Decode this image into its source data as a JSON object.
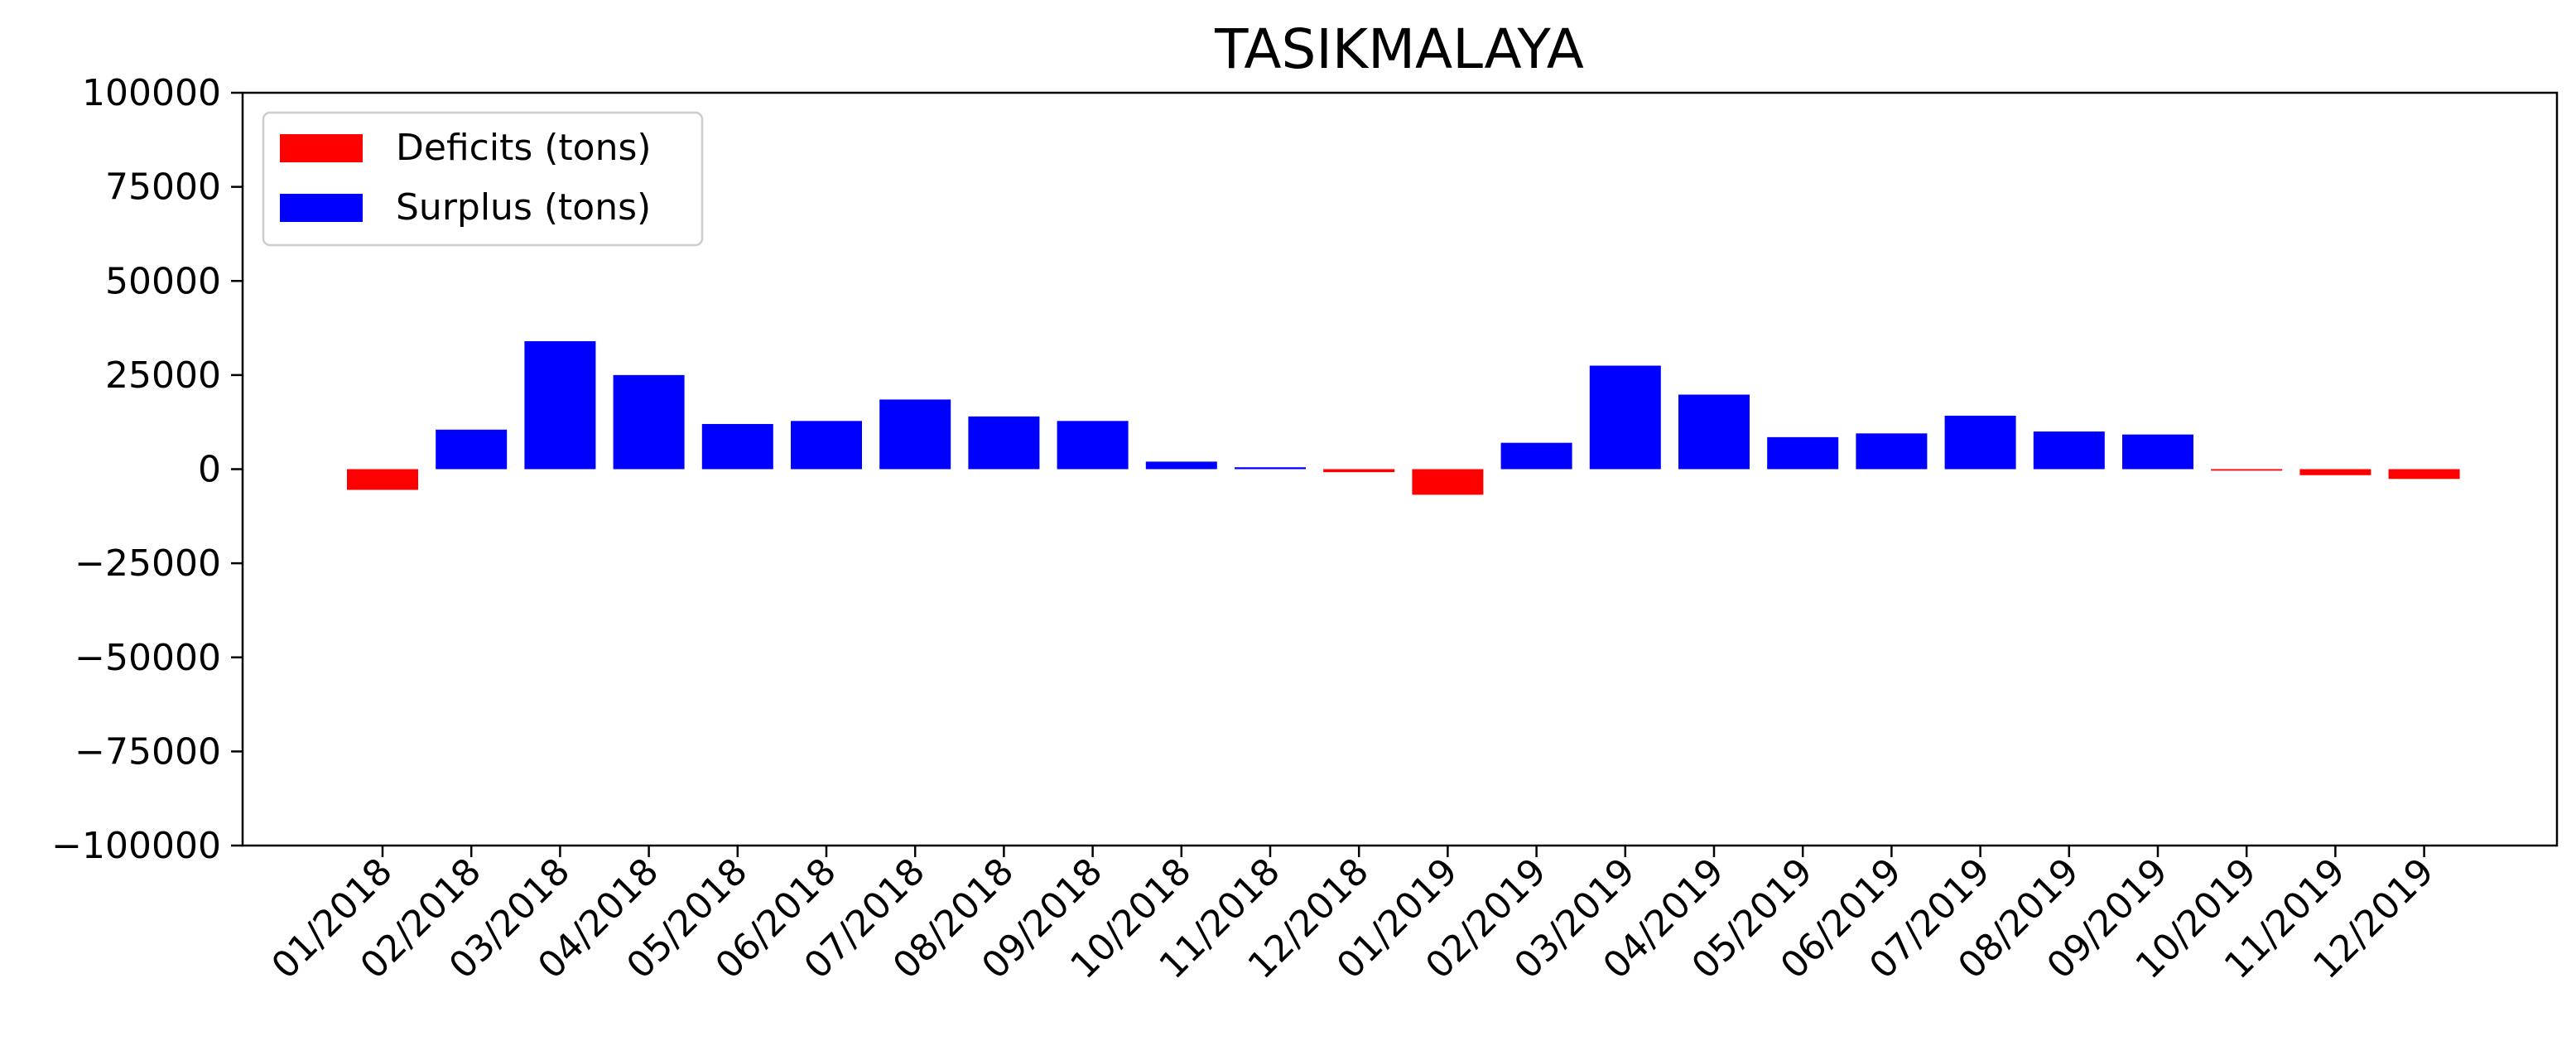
{
  "chart_data": {
    "type": "bar",
    "title": "TASIKMALAYA",
    "xlabel": "",
    "ylabel": "",
    "ylim": [
      -100000,
      100000
    ],
    "yticks": [
      100000,
      75000,
      50000,
      25000,
      0,
      -25000,
      -50000,
      -75000,
      -100000
    ],
    "ytick_labels": [
      "100000",
      "75000",
      "50000",
      "25000",
      "0",
      "−25000",
      "−50000",
      "−75000",
      "−100000"
    ],
    "grid": false,
    "legend_position": "top-left",
    "categories": [
      "01/2018",
      "02/2018",
      "03/2018",
      "04/2018",
      "05/2018",
      "06/2018",
      "07/2018",
      "08/2018",
      "09/2018",
      "10/2018",
      "11/2018",
      "12/2018",
      "01/2019",
      "02/2019",
      "03/2019",
      "04/2019",
      "05/2019",
      "06/2019",
      "07/2019",
      "08/2019",
      "09/2019",
      "10/2019",
      "11/2019",
      "12/2019"
    ],
    "series": [
      {
        "name": "Deficits (tons)",
        "color": "#ff0000",
        "values": [
          -5500,
          0,
          0,
          0,
          0,
          0,
          0,
          0,
          0,
          0,
          0,
          -800,
          -6800,
          0,
          0,
          0,
          0,
          0,
          0,
          0,
          0,
          -400,
          -1600,
          -2600
        ]
      },
      {
        "name": "Surplus (tons)",
        "color": "#0000ff",
        "values": [
          0,
          10500,
          34000,
          25000,
          12000,
          12800,
          18500,
          14000,
          12800,
          2000,
          500,
          0,
          0,
          7000,
          27500,
          19800,
          8500,
          9500,
          14200,
          10000,
          9200,
          0,
          0,
          0
        ]
      }
    ]
  }
}
